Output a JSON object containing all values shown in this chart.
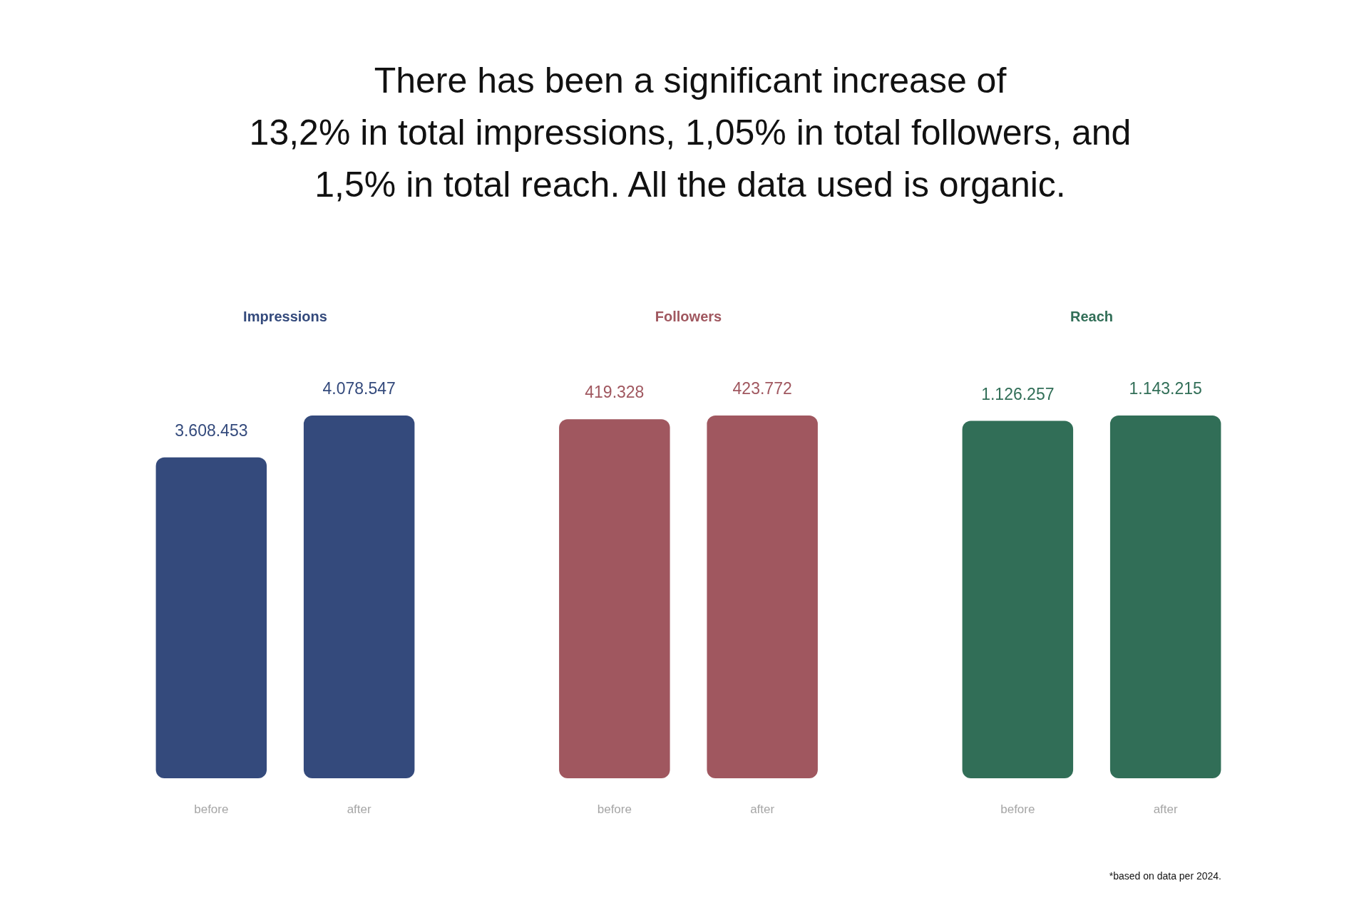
{
  "chart_data": [
    {
      "type": "other",
      "title": "There has been a significant increase of\n13,2% in total impressions, 1,05% in total followers, and\n1,5% in total reach. All the data used is organic.",
      "annotations": [
        "*based on data per 2024."
      ]
    },
    {
      "type": "bar",
      "title": "Impressions",
      "categories": [
        "before",
        "after"
      ],
      "values": [
        3608453,
        4078547
      ],
      "value_labels": [
        "3.608.453",
        "4.078.547"
      ],
      "color": "#344a7c"
    },
    {
      "type": "bar",
      "title": "Followers",
      "categories": [
        "before",
        "after"
      ],
      "values": [
        419328,
        423772
      ],
      "value_labels": [
        "419.328",
        "423.772"
      ],
      "color": "#a0575f"
    },
    {
      "type": "bar",
      "title": "Reach",
      "categories": [
        "before",
        "after"
      ],
      "values": [
        1126257,
        1143215
      ],
      "value_labels": [
        "1.126.257",
        "1.143.215"
      ],
      "color": "#316e57"
    }
  ]
}
